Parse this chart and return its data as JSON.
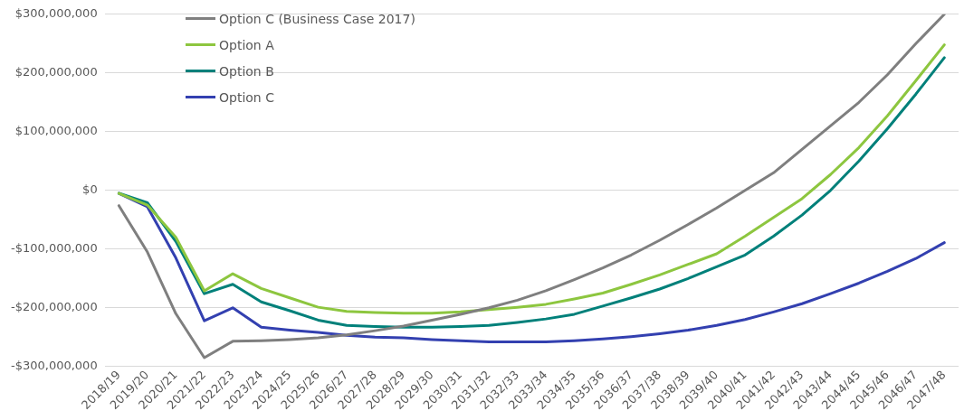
{
  "chart_data": {
    "type": "line",
    "categories": [
      "2018/19",
      "2019/20",
      "2020/21",
      "2021/22",
      "2022/23",
      "2023/24",
      "2024/25",
      "2025/26",
      "2026/27",
      "2027/28",
      "2028/29",
      "2029/30",
      "2030/31",
      "2031/32",
      "2032/33",
      "2033/34",
      "2034/35",
      "2035/36",
      "2036/37",
      "2037/38",
      "2038/39",
      "2039/40",
      "2040/41",
      "2041/42",
      "2042/43",
      "2043/44",
      "2044/45",
      "2045/46",
      "2046/47",
      "2047/48"
    ],
    "series": [
      {
        "name": "Option C (Business Case 2017)",
        "color": "#7f7f7f",
        "values": [
          -26000000,
          -105000000,
          -210000000,
          -285000000,
          -257000000,
          -256000000,
          -254000000,
          -251000000,
          -246000000,
          -239000000,
          -231000000,
          -221000000,
          -211000000,
          -200000000,
          -187000000,
          -171000000,
          -152000000,
          -132000000,
          -110000000,
          -85000000,
          -58000000,
          -30000000,
          0,
          30000000,
          70000000,
          110000000,
          150000000,
          197000000,
          250000000,
          300000000
        ]
      },
      {
        "name": "Option A",
        "color": "#8dc63f",
        "values": [
          -5000000,
          -25000000,
          -80000000,
          -171000000,
          -142000000,
          -167000000,
          -183000000,
          -199000000,
          -206000000,
          -208000000,
          -209000000,
          -209000000,
          -207000000,
          -203000000,
          -199000000,
          -194000000,
          -185000000,
          -175000000,
          -160000000,
          -144000000,
          -126000000,
          -108000000,
          -78000000,
          -46000000,
          -14000000,
          27000000,
          73000000,
          127000000,
          187000000,
          248000000
        ]
      },
      {
        "name": "Option B",
        "color": "#00807a",
        "values": [
          -5000000,
          -21000000,
          -87000000,
          -176000000,
          -160000000,
          -190000000,
          -205000000,
          -221000000,
          -230000000,
          -232000000,
          -233000000,
          -233000000,
          -232000000,
          -230000000,
          -225000000,
          -219000000,
          -211000000,
          -197000000,
          -183000000,
          -168000000,
          -150000000,
          -130000000,
          -110000000,
          -78000000,
          -42000000,
          0,
          50000000,
          105000000,
          164000000,
          226000000
        ]
      },
      {
        "name": "Option C",
        "color": "#3340b0",
        "values": [
          -5000000,
          -28000000,
          -115000000,
          -222000000,
          -200000000,
          -233000000,
          -238000000,
          -242000000,
          -247000000,
          -250000000,
          -251000000,
          -254000000,
          -256000000,
          -258000000,
          -258000000,
          -258000000,
          -256000000,
          -253000000,
          -249000000,
          -244000000,
          -238000000,
          -230000000,
          -220000000,
          -207000000,
          -193000000,
          -176000000,
          -158000000,
          -138000000,
          -116000000,
          -89000000
        ]
      }
    ],
    "ylim": [
      -300000000,
      300000000
    ],
    "yticks": [
      {
        "value": -300000000,
        "label": "-$300,000,000"
      },
      {
        "value": -200000000,
        "label": "-$200,000,000"
      },
      {
        "value": -100000000,
        "label": "-$100,000,000"
      },
      {
        "value": 0,
        "label": "$0"
      },
      {
        "value": 100000000,
        "label": "$100,000,000"
      },
      {
        "value": 200000000,
        "label": "$200,000,000"
      },
      {
        "value": 300000000,
        "label": "$300,000,000"
      }
    ],
    "grid": "y",
    "legend": "top left",
    "marker": "none",
    "line_style": "solid"
  }
}
